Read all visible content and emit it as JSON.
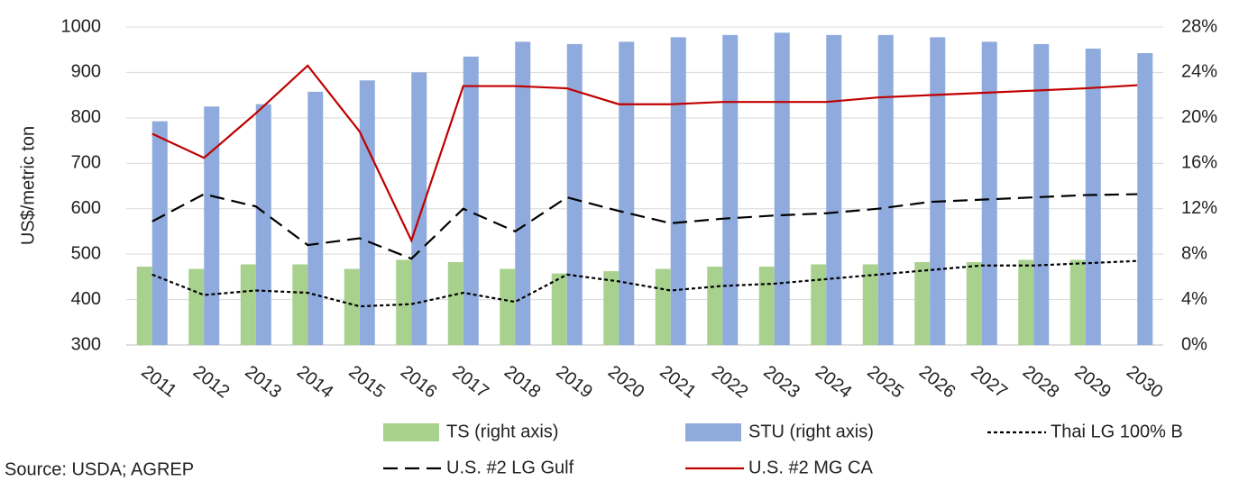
{
  "chart_data": {
    "type": "combo",
    "y_label": "US$/metric ton",
    "source": "Source: USDA; AGREP",
    "categories": [
      "2011",
      "2012",
      "2013",
      "2014",
      "2015",
      "2016",
      "2017",
      "2018",
      "2019",
      "2020",
      "2021",
      "2022",
      "2023",
      "2024",
      "2025",
      "2026",
      "2027",
      "2028",
      "2029",
      "2030"
    ],
    "ylim": [
      300,
      1000
    ],
    "yticks": [
      300,
      400,
      500,
      600,
      700,
      800,
      900,
      1000
    ],
    "y2lim": [
      0,
      28
    ],
    "y2ticks": [
      {
        "value": 0,
        "label": "0%"
      },
      {
        "value": 4,
        "label": "4%"
      },
      {
        "value": 8,
        "label": "8%"
      },
      {
        "value": 12,
        "label": "12%"
      },
      {
        "value": 16,
        "label": "16%"
      },
      {
        "value": 20,
        "label": "20%"
      },
      {
        "value": 24,
        "label": "24%"
      },
      {
        "value": 28,
        "label": "28%"
      }
    ],
    "grid": true,
    "series": [
      {
        "name": "TS (right axis)",
        "type": "bar",
        "axis": "y2",
        "color": "#a9d18e",
        "values": [
          6.9,
          6.7,
          7.1,
          7.1,
          6.7,
          7.5,
          7.3,
          6.7,
          6.3,
          6.5,
          6.7,
          6.9,
          6.9,
          7.1,
          7.1,
          7.3,
          7.3,
          7.5,
          7.5,
          null
        ]
      },
      {
        "name": "STU (right axis)",
        "type": "bar",
        "axis": "y2",
        "color": "#8faadc",
        "values": [
          19.7,
          21.0,
          21.2,
          22.3,
          23.3,
          24.0,
          25.4,
          26.7,
          26.5,
          26.7,
          27.1,
          27.3,
          27.5,
          27.3,
          27.3,
          27.1,
          26.7,
          26.5,
          26.1,
          25.7
        ]
      },
      {
        "name": "Thai LG 100% B",
        "type": "line",
        "dash": "4,3",
        "color": "#000000",
        "values": [
          455,
          410,
          420,
          415,
          385,
          390,
          415,
          395,
          455,
          440,
          420,
          430,
          435,
          445,
          455,
          465,
          475,
          475,
          480,
          485
        ]
      },
      {
        "name": "U.S. #2 LG Gulf",
        "type": "line",
        "dash": "16,8",
        "color": "#000000",
        "values": [
          572,
          632,
          605,
          520,
          535,
          490,
          600,
          550,
          625,
          595,
          568,
          578,
          585,
          590,
          600,
          615,
          620,
          625,
          630,
          632
        ]
      },
      {
        "name": "U.S. #2 MG CA",
        "type": "line",
        "color": "#c00000",
        "values": [
          765,
          712,
          810,
          915,
          770,
          530,
          870,
          870,
          865,
          830,
          830,
          835,
          835,
          835,
          845,
          850,
          855,
          860,
          865,
          872
        ]
      }
    ]
  }
}
